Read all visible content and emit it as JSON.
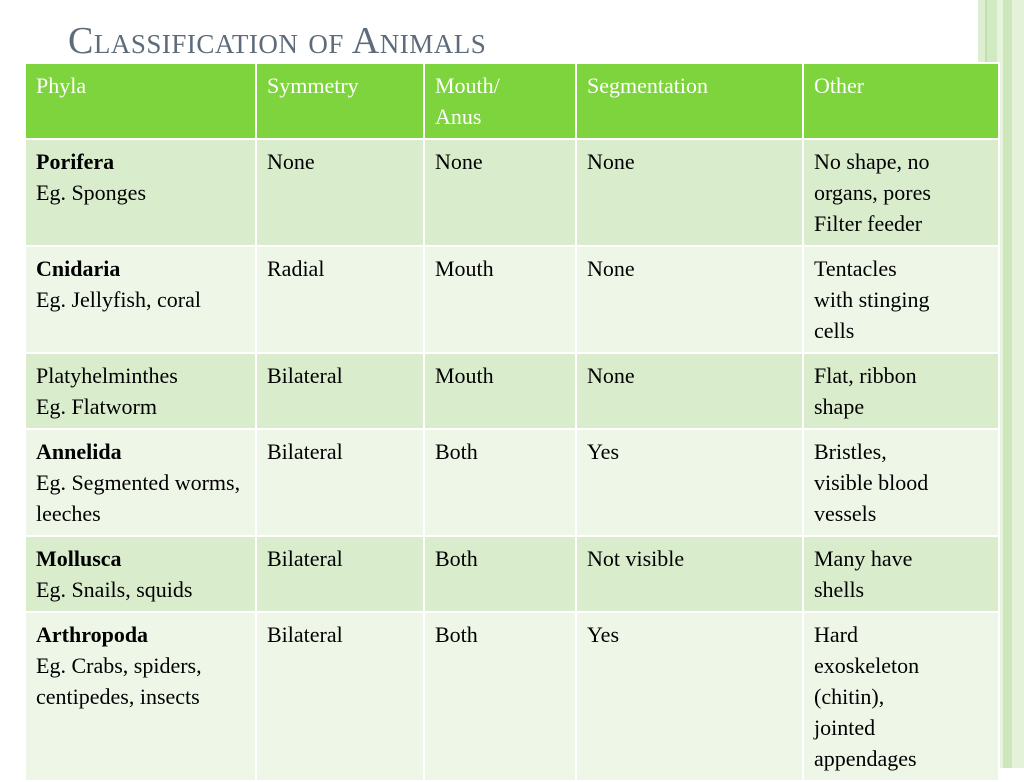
{
  "slide": {
    "title": "Classification of Animals"
  },
  "table": {
    "headers": {
      "phyla": "Phyla",
      "symmetry": "Symmetry",
      "mouth_anus_1": "Mouth/",
      "mouth_anus_2": "Anus",
      "segmentation": "Segmentation",
      "other": "Other"
    },
    "rows": [
      {
        "name": "Porifera",
        "example": "Eg. Sponges",
        "symmetry": "None",
        "mouth_anus": "None",
        "segmentation": "None",
        "other": [
          "No shape, no",
          "organs, pores",
          "Filter feeder"
        ]
      },
      {
        "name": "Cnidaria",
        "example": "Eg. Jellyfish, coral",
        "symmetry": "Radial",
        "mouth_anus": "Mouth",
        "segmentation": "None",
        "other": [
          "Tentacles",
          "with stinging",
          "cells"
        ]
      },
      {
        "name": "Platyhelminthes",
        "example": "Eg. Flatworm",
        "symmetry": "Bilateral",
        "mouth_anus": "Mouth",
        "segmentation": "None",
        "other": [
          "Flat, ribbon",
          "shape"
        ]
      },
      {
        "name": "Annelida",
        "example": "Eg. Segmented worms, leeches",
        "symmetry": "Bilateral",
        "mouth_anus": "Both",
        "segmentation": "Yes",
        "other": [
          "Bristles,",
          "visible blood",
          "vessels"
        ]
      },
      {
        "name": "Mollusca",
        "example": "Eg. Snails, squids",
        "symmetry": "Bilateral",
        "mouth_anus": "Both",
        "segmentation": "Not visible",
        "other": [
          "Many have",
          "shells"
        ]
      },
      {
        "name": "Arthropoda",
        "example": "Eg. Crabs, spiders, centipedes, insects",
        "symmetry": "Bilateral",
        "mouth_anus": "Both",
        "segmentation": "Yes",
        "other": [
          "Hard",
          "exoskeleton",
          "(chitin),",
          "jointed",
          "appendages"
        ]
      }
    ]
  }
}
